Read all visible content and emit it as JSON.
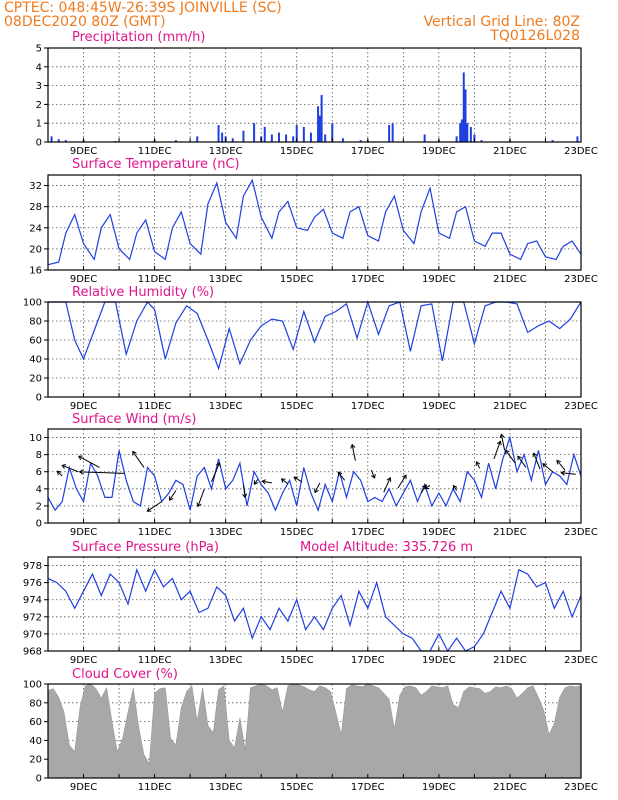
{
  "header": {
    "line1_left": "CPTEC:    048:45W-26:39S    JOINVILLE (SC)",
    "line2_left": "08DEC2020 80Z (GMT)",
    "line1_right": "Vertical Grid Line: 80Z",
    "line2_right": "TQ0126L028"
  },
  "date_labels": [
    "9DEC",
    "11DEC",
    "13DEC",
    "15DEC",
    "17DEC",
    "19DEC",
    "21DEC",
    "23DEC"
  ],
  "colors": {
    "header": "#f07a1e",
    "title": "#e0148c",
    "line": "#1f3fe0",
    "bar": "#1f3fe0",
    "cloud": "#a8a8a8"
  },
  "chart_data": [
    {
      "type": "bar",
      "title": "Precipitation (mm/h)",
      "x_range": [
        8,
        23
      ],
      "ylim": [
        0,
        5
      ],
      "yticks": [
        0,
        1,
        2,
        3,
        4,
        5
      ],
      "x": [
        8.1,
        8.3,
        8.5,
        9.0,
        9.9,
        11.0,
        11.6,
        12.2,
        12.8,
        12.9,
        13.0,
        13.2,
        13.5,
        13.8,
        14.0,
        14.1,
        14.3,
        14.5,
        14.7,
        14.9,
        15.0,
        15.2,
        15.4,
        15.6,
        15.65,
        15.7,
        15.8,
        16.0,
        16.3,
        16.8,
        17.0,
        17.6,
        17.7,
        18.6,
        19.0,
        19.5,
        19.6,
        19.65,
        19.7,
        19.75,
        19.8,
        19.9,
        20.0,
        20.2,
        21.0,
        22.2,
        22.9
      ],
      "values": [
        0.3,
        0.15,
        0.1,
        0.1,
        0.05,
        0.1,
        0.1,
        0.3,
        0.9,
        0.5,
        0.3,
        0.2,
        0.6,
        1.0,
        0.3,
        0.8,
        0.4,
        0.5,
        0.4,
        0.3,
        0.9,
        0.8,
        0.5,
        1.9,
        1.4,
        2.5,
        0.4,
        1.0,
        0.2,
        0.1,
        0.1,
        0.9,
        1.0,
        0.4,
        0.1,
        0.3,
        1.0,
        1.2,
        3.7,
        2.8,
        1.0,
        0.8,
        0.4,
        0.1,
        0.1,
        0.1,
        0.3
      ]
    },
    {
      "type": "line",
      "title": "Surface Temperature (nC)",
      "x_range": [
        8,
        23
      ],
      "ylim": [
        16,
        34
      ],
      "yticks": [
        16,
        20,
        24,
        28,
        32
      ],
      "x": [
        8.0,
        8.3,
        8.5,
        8.75,
        9.0,
        9.3,
        9.5,
        9.75,
        10.0,
        10.3,
        10.5,
        10.75,
        11.0,
        11.3,
        11.5,
        11.75,
        12.0,
        12.3,
        12.5,
        12.75,
        13.0,
        13.3,
        13.5,
        13.75,
        14.0,
        14.3,
        14.5,
        14.75,
        15.0,
        15.3,
        15.5,
        15.75,
        16.0,
        16.3,
        16.5,
        16.75,
        17.0,
        17.3,
        17.5,
        17.75,
        18.0,
        18.3,
        18.5,
        18.75,
        19.0,
        19.3,
        19.5,
        19.75,
        20.0,
        20.3,
        20.5,
        20.75,
        21.0,
        21.3,
        21.5,
        21.75,
        22.0,
        22.3,
        22.5,
        22.75,
        23.0
      ],
      "values": [
        17,
        17.5,
        23,
        26.5,
        21,
        18,
        24,
        26.5,
        20,
        18,
        23,
        25.5,
        19.5,
        18,
        24,
        27,
        21,
        19,
        28.5,
        32.5,
        25,
        22,
        30,
        33,
        26,
        22,
        27,
        29,
        24,
        23.5,
        26,
        27.5,
        23,
        22,
        27,
        28,
        22.5,
        21.5,
        27,
        30,
        23.5,
        21,
        27,
        31.5,
        23,
        22,
        27,
        28,
        21.5,
        20.5,
        23,
        23,
        19,
        18,
        21,
        21.5,
        18.5,
        18,
        20.5,
        21.5,
        19
      ]
    },
    {
      "type": "line",
      "title": "Relative Humidity (%)",
      "x_range": [
        8,
        23
      ],
      "ylim": [
        0,
        100
      ],
      "yticks": [
        0,
        20,
        40,
        60,
        80,
        100
      ],
      "x": [
        8.0,
        8.25,
        8.5,
        8.75,
        9.0,
        9.3,
        9.6,
        9.9,
        10.2,
        10.5,
        10.8,
        11.0,
        11.3,
        11.6,
        11.9,
        12.2,
        12.5,
        12.8,
        13.1,
        13.4,
        13.7,
        14.0,
        14.3,
        14.6,
        14.9,
        15.2,
        15.5,
        15.8,
        16.1,
        16.4,
        16.7,
        17.0,
        17.3,
        17.6,
        17.9,
        18.2,
        18.5,
        18.8,
        19.1,
        19.4,
        19.7,
        20.0,
        20.3,
        20.6,
        20.9,
        21.2,
        21.5,
        21.8,
        22.1,
        22.4,
        22.7,
        23.0
      ],
      "values": [
        100,
        100,
        100,
        60,
        40,
        70,
        100,
        100,
        45,
        80,
        100,
        92,
        40,
        78,
        96,
        88,
        60,
        30,
        72,
        35,
        60,
        75,
        82,
        80,
        50,
        90,
        58,
        85,
        90,
        98,
        62,
        100,
        66,
        96,
        100,
        48,
        96,
        98,
        38,
        100,
        100,
        56,
        96,
        100,
        100,
        98,
        68,
        75,
        80,
        72,
        82,
        100
      ]
    },
    {
      "type": "line",
      "title": "Surface Wind (m/s)",
      "x_range": [
        8,
        23
      ],
      "ylim": [
        0,
        11
      ],
      "yticks": [
        0,
        2,
        4,
        6,
        8,
        10
      ],
      "x": [
        8.0,
        8.2,
        8.4,
        8.6,
        8.8,
        9.0,
        9.2,
        9.4,
        9.6,
        9.8,
        10.0,
        10.2,
        10.4,
        10.6,
        10.8,
        11.0,
        11.2,
        11.4,
        11.6,
        11.8,
        12.0,
        12.2,
        12.4,
        12.6,
        12.8,
        13.0,
        13.2,
        13.4,
        13.6,
        13.8,
        14.0,
        14.2,
        14.4,
        14.6,
        14.8,
        15.0,
        15.2,
        15.4,
        15.6,
        15.8,
        16.0,
        16.2,
        16.4,
        16.6,
        16.8,
        17.0,
        17.2,
        17.4,
        17.6,
        17.8,
        18.0,
        18.2,
        18.4,
        18.6,
        18.8,
        19.0,
        19.2,
        19.4,
        19.6,
        19.8,
        20.0,
        20.2,
        20.4,
        20.6,
        20.8,
        21.0,
        21.2,
        21.4,
        21.6,
        21.8,
        22.0,
        22.2,
        22.4,
        22.6,
        22.8,
        23.0
      ],
      "values": [
        3,
        1.5,
        2.5,
        6.5,
        4,
        2.5,
        7,
        5.5,
        3,
        3,
        8.5,
        5,
        2.5,
        2,
        6.5,
        5.5,
        2.5,
        3.5,
        5,
        4.5,
        1.5,
        5.5,
        6.5,
        4,
        7.5,
        4,
        5,
        7,
        2,
        6,
        4.5,
        3.5,
        1.5,
        3.5,
        5,
        2,
        6.5,
        3.5,
        1.5,
        4.5,
        2.5,
        6,
        3,
        6,
        5,
        2.5,
        3,
        2.5,
        4,
        2,
        3.5,
        5,
        2.5,
        4.5,
        2,
        3.5,
        2,
        4,
        2.5,
        6,
        5,
        3,
        7,
        4,
        7.5,
        10,
        6,
        8,
        5,
        8.5,
        4.5,
        6,
        5.5,
        4.5,
        8,
        5.5
      ],
      "vectors": [
        {
          "x": 8.4,
          "y": 5.5,
          "u": -0.3,
          "v": 0.3
        },
        {
          "x": 8.85,
          "y": 6.0,
          "u": -1.0,
          "v": 0.4
        },
        {
          "x": 9.45,
          "y": 6.5,
          "u": -1.3,
          "v": 0.7
        },
        {
          "x": 10.15,
          "y": 5.8,
          "u": -2.8,
          "v": 0.1
        },
        {
          "x": 10.7,
          "y": 6.5,
          "u": -0.7,
          "v": 1.0
        },
        {
          "x": 11.2,
          "y": 2.5,
          "u": -0.9,
          "v": -0.6
        },
        {
          "x": 11.6,
          "y": 3.8,
          "u": -0.4,
          "v": -0.6
        },
        {
          "x": 12.4,
          "y": 4.0,
          "u": -0.4,
          "v": -1.1
        },
        {
          "x": 12.6,
          "y": 4.8,
          "u": 0.5,
          "v": 1.2
        },
        {
          "x": 13.5,
          "y": 4.5,
          "u": 0.1,
          "v": -0.8
        },
        {
          "x": 13.9,
          "y": 5.1,
          "u": -0.2,
          "v": -0.3
        },
        {
          "x": 14.3,
          "y": 4.7,
          "u": -0.6,
          "v": 0.1
        },
        {
          "x": 14.75,
          "y": 4.6,
          "u": -0.4,
          "v": 0.3
        },
        {
          "x": 15.15,
          "y": 4.8,
          "u": -0.5,
          "v": 0.3
        },
        {
          "x": 15.65,
          "y": 4.7,
          "u": -0.3,
          "v": -0.6
        },
        {
          "x": 16.35,
          "y": 5.0,
          "u": -0.4,
          "v": 0.5
        },
        {
          "x": 16.65,
          "y": 7.3,
          "u": -0.2,
          "v": 1.0
        },
        {
          "x": 17.1,
          "y": 6.2,
          "u": 0.2,
          "v": -0.5
        },
        {
          "x": 17.45,
          "y": 3.6,
          "u": 0.4,
          "v": 0.9
        },
        {
          "x": 17.85,
          "y": 4.1,
          "u": 0.5,
          "v": 0.8
        },
        {
          "x": 18.5,
          "y": 3.5,
          "u": 0.3,
          "v": 0.5
        },
        {
          "x": 18.75,
          "y": 4.4,
          "u": -0.3,
          "v": -0.2
        },
        {
          "x": 19.5,
          "y": 3.8,
          "u": -0.2,
          "v": 0.3
        },
        {
          "x": 20.15,
          "y": 6.4,
          "u": -0.2,
          "v": 0.4
        },
        {
          "x": 20.55,
          "y": 7.5,
          "u": 0.4,
          "v": 1.1
        },
        {
          "x": 20.85,
          "y": 8.5,
          "u": -0.2,
          "v": 1.0
        },
        {
          "x": 21.15,
          "y": 7.0,
          "u": -0.6,
          "v": 0.8
        },
        {
          "x": 21.45,
          "y": 6.5,
          "u": -0.5,
          "v": 0.7
        },
        {
          "x": 21.85,
          "y": 6.3,
          "u": -0.4,
          "v": 1.0
        },
        {
          "x": 22.2,
          "y": 6.0,
          "u": -0.6,
          "v": 0.5
        },
        {
          "x": 22.55,
          "y": 6.2,
          "u": -0.5,
          "v": 0.6
        },
        {
          "x": 22.85,
          "y": 5.7,
          "u": -0.9,
          "v": 0.1
        }
      ]
    },
    {
      "type": "line",
      "title": "Surface Pressure (hPa)",
      "subtitle": "Model Altitude: 335.726 m",
      "x_range": [
        8,
        23
      ],
      "ylim": [
        968,
        979
      ],
      "yticks": [
        968,
        970,
        972,
        974,
        976,
        978
      ],
      "x": [
        8.0,
        8.25,
        8.5,
        8.75,
        9.0,
        9.25,
        9.5,
        9.75,
        10.0,
        10.25,
        10.5,
        10.75,
        11.0,
        11.25,
        11.5,
        11.75,
        12.0,
        12.25,
        12.5,
        12.75,
        13.0,
        13.25,
        13.5,
        13.75,
        14.0,
        14.25,
        14.5,
        14.75,
        15.0,
        15.25,
        15.5,
        15.75,
        16.0,
        16.25,
        16.5,
        16.75,
        17.0,
        17.25,
        17.5,
        17.75,
        18.0,
        18.25,
        18.5,
        18.75,
        19.0,
        19.25,
        19.5,
        19.75,
        20.0,
        20.25,
        20.5,
        20.75,
        21.0,
        21.25,
        21.5,
        21.75,
        22.0,
        22.25,
        22.5,
        22.75,
        23.0
      ],
      "values": [
        976.5,
        976,
        975,
        973,
        975,
        977,
        974.5,
        977,
        976,
        973.5,
        977.5,
        975,
        977.5,
        975.5,
        976.5,
        974,
        975,
        972.5,
        973,
        975.5,
        974.5,
        971.5,
        973,
        969.5,
        972,
        970.5,
        973,
        971.5,
        974,
        970.5,
        972,
        970.5,
        973,
        974.5,
        971,
        975,
        973,
        976,
        972,
        971,
        970,
        969.5,
        968,
        967.5,
        970,
        968,
        969.5,
        967,
        968.5,
        970,
        972.5,
        975,
        973,
        977.5,
        977,
        975.5,
        976,
        973,
        975,
        972,
        974.5
      ]
    },
    {
      "type": "area",
      "title": "Cloud Cover (%)",
      "x_range": [
        8,
        23
      ],
      "ylim": [
        0,
        100
      ],
      "yticks": [
        0,
        20,
        40,
        60,
        80,
        100
      ],
      "x": [
        8.0,
        8.15,
        8.3,
        8.45,
        8.6,
        8.75,
        8.9,
        9.05,
        9.2,
        9.35,
        9.5,
        9.65,
        9.8,
        9.95,
        10.1,
        10.25,
        10.4,
        10.55,
        10.7,
        10.85,
        11.0,
        11.15,
        11.3,
        11.45,
        11.6,
        11.75,
        11.9,
        12.05,
        12.2,
        12.35,
        12.5,
        12.65,
        12.8,
        12.95,
        13.1,
        13.25,
        13.4,
        13.55,
        13.7,
        13.85,
        14.0,
        14.15,
        14.3,
        14.45,
        14.6,
        14.75,
        14.9,
        15.05,
        15.2,
        15.35,
        15.5,
        15.65,
        15.8,
        15.95,
        16.1,
        16.25,
        16.4,
        16.55,
        16.7,
        16.85,
        17.0,
        17.15,
        17.3,
        17.45,
        17.6,
        17.75,
        17.9,
        18.05,
        18.2,
        18.35,
        18.5,
        18.65,
        18.8,
        18.95,
        19.1,
        19.25,
        19.4,
        19.55,
        19.7,
        19.85,
        20.0,
        20.15,
        20.3,
        20.45,
        20.6,
        20.75,
        20.9,
        21.05,
        21.2,
        21.35,
        21.5,
        21.65,
        21.8,
        21.95,
        22.1,
        22.25,
        22.4,
        22.55,
        22.7,
        22.85,
        23.0
      ],
      "values": [
        93,
        95,
        86,
        70,
        35,
        28,
        75,
        98,
        100,
        95,
        85,
        96,
        60,
        28,
        42,
        70,
        96,
        55,
        25,
        15,
        90,
        95,
        96,
        42,
        35,
        75,
        92,
        98,
        60,
        96,
        56,
        48,
        94,
        98,
        40,
        32,
        64,
        30,
        96,
        98,
        100,
        98,
        94,
        96,
        70,
        98,
        100,
        99,
        97,
        94,
        92,
        98,
        96,
        92,
        70,
        46,
        95,
        99,
        98,
        97,
        100,
        98,
        96,
        90,
        84,
        52,
        88,
        97,
        98,
        96,
        88,
        92,
        98,
        97,
        96,
        98,
        78,
        75,
        92,
        97,
        96,
        95,
        90,
        92,
        97,
        96,
        98,
        95,
        85,
        90,
        96,
        98,
        86,
        72,
        46,
        58,
        86,
        96,
        98,
        97,
        98
      ]
    }
  ]
}
